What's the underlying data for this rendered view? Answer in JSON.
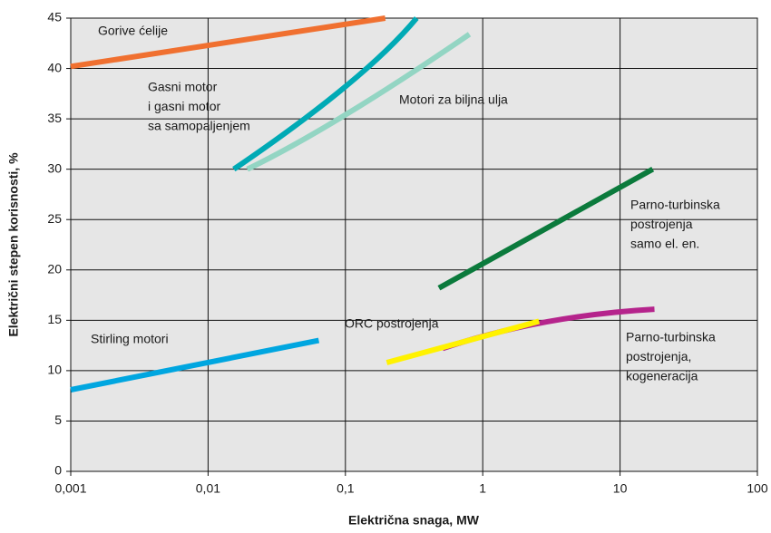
{
  "chart_data": {
    "type": "line",
    "xlabel": "Električna snaga, MW",
    "ylabel": "Električni stepen korisnosti, %",
    "xscale": "log",
    "grid": true,
    "xlim": [
      0.001,
      100
    ],
    "ylim": [
      0,
      45
    ],
    "xticks": [
      {
        "value": 0.001,
        "label": "0,001"
      },
      {
        "value": 0.01,
        "label": "0,01"
      },
      {
        "value": 0.1,
        "label": "0,1"
      },
      1,
      10,
      100
    ],
    "yticks": [
      0,
      5,
      10,
      15,
      20,
      25,
      30,
      35,
      40,
      45
    ],
    "series": [
      {
        "label": [
          "Gorive ćelije"
        ],
        "color": "#f07030",
        "x": [
          0.001,
          0.195
        ],
        "values": [
          40.2,
          45
        ]
      },
      {
        "label": [
          "Gasni motor",
          "i gasni motor",
          "sa samopaljenjem"
        ],
        "color": "#00aab5",
        "x": [
          0.0154,
          0.1,
          0.33
        ],
        "values": [
          30,
          38.2,
          45
        ]
      },
      {
        "label": [
          "Motori za biljna ulja"
        ],
        "color": "#93d5c3",
        "x": [
          0.0193,
          0.1,
          0.8
        ],
        "values": [
          30,
          35.4,
          43.4
        ]
      },
      {
        "label": [
          "Parno-turbinska",
          "postrojenja",
          "samo el. en."
        ],
        "color": "#0b7a3c",
        "x": [
          0.48,
          17.3
        ],
        "values": [
          18.2,
          30
        ]
      },
      {
        "label": [
          "Parno-turbinska",
          "postrojenja,",
          "kogeneracija"
        ],
        "color": "#b5248c",
        "x": [
          0.51,
          2.8,
          17.8
        ],
        "values": [
          12.2,
          14.8,
          16.1
        ]
      },
      {
        "label": [
          "ORC postrojenja"
        ],
        "color": "#fff200",
        "x": [
          0.2,
          2.57
        ],
        "values": [
          10.8,
          14.9
        ]
      },
      {
        "label": [
          "Stirling motori"
        ],
        "color": "#00a6e0",
        "x": [
          0.001,
          0.064
        ],
        "values": [
          8.1,
          13
        ]
      }
    ]
  }
}
